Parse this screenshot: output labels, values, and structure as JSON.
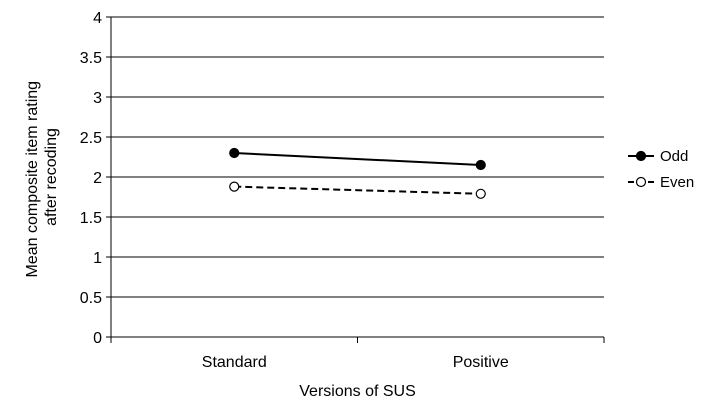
{
  "chart_data": {
    "type": "line",
    "title": "",
    "xlabel": "Versions of SUS",
    "ylabel_lines": [
      "Mean composite item rating",
      "after recoding"
    ],
    "categories": [
      "Standard",
      "Positive"
    ],
    "ylim": [
      0,
      4
    ],
    "yticks": [
      "0",
      "0.5",
      "1",
      "1.5",
      "2",
      "2.5",
      "3",
      "3.5",
      "4"
    ],
    "grid": true,
    "legend_position": "right",
    "series": [
      {
        "name": "Odd",
        "values": [
          2.3,
          2.15
        ],
        "line_style": "solid",
        "marker": "filled-circle",
        "color": "#000000"
      },
      {
        "name": "Even",
        "values": [
          1.88,
          1.79
        ],
        "line_style": "dashed",
        "marker": "open-circle",
        "color": "#000000"
      }
    ]
  }
}
